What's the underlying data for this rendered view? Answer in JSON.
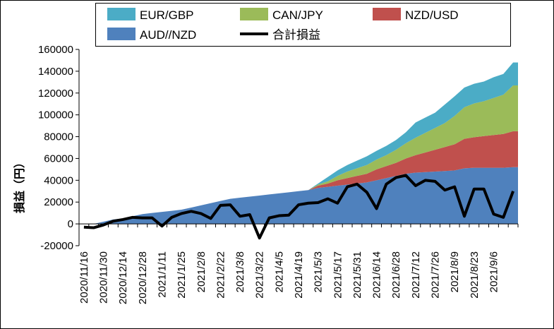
{
  "chart_data": {
    "type": "area",
    "stacked": true,
    "title": "",
    "xlabel": "",
    "ylabel": "損益（円）",
    "ylim": [
      -20000,
      160000
    ],
    "ytick_step": 20000,
    "yticks": [
      "160000",
      "140000",
      "120000",
      "100000",
      "80000",
      "60000",
      "40000",
      "20000",
      "0",
      "-20000"
    ],
    "grid": false,
    "legend_position": "top",
    "x": [
      "2020/11/16",
      "2020/11/23",
      "2020/11/30",
      "2020/12/7",
      "2020/12/14",
      "2020/12/21",
      "2020/12/28",
      "2021/1/4",
      "2021/1/11",
      "2021/1/18",
      "2021/1/25",
      "2021/2/1",
      "2021/2/8",
      "2021/2/15",
      "2021/2/22",
      "2021/3/1",
      "2021/3/8",
      "2021/3/15",
      "2021/3/22",
      "2021/3/29",
      "2021/4/5",
      "2021/4/12",
      "2021/4/19",
      "2021/4/26",
      "2021/5/3",
      "2021/5/10",
      "2021/5/17",
      "2021/5/24",
      "2021/5/31",
      "2021/6/7",
      "2021/6/14",
      "2021/6/21",
      "2021/6/28",
      "2021/7/5",
      "2021/7/12",
      "2021/7/19",
      "2021/7/26",
      "2021/8/2",
      "2021/8/9",
      "2021/8/16",
      "2021/8/23",
      "2021/8/30",
      "2021/9/6",
      "2021/9/13",
      "2021/9/20"
    ],
    "xtick_labels": [
      "2020/11/16",
      "2020/11/30",
      "2020/12/14",
      "2020/12/28",
      "2021/1/11",
      "2021/1/25",
      "2021/2/8",
      "2021/2/22",
      "2021/3/8",
      "2021/3/22",
      "2021/4/5",
      "2021/4/19",
      "2021/5/3",
      "2021/5/17",
      "2021/5/31",
      "2021/6/14",
      "2021/6/28",
      "2021/7/12",
      "2021/7/26",
      "2021/8/9",
      "2021/8/23",
      "2021/9/6"
    ],
    "series": [
      {
        "name": "AUD//NZD",
        "kind": "area",
        "color": "#4f81bd",
        "values": [
          0,
          0,
          2000,
          4000,
          5000,
          7000,
          9000,
          10000,
          11000,
          12000,
          13000,
          15000,
          17000,
          19000,
          21000,
          23000,
          24000,
          25000,
          26000,
          27000,
          28000,
          29000,
          30000,
          31000,
          33000,
          34000,
          35000,
          36000,
          37000,
          38000,
          40000,
          42000,
          44000,
          46000,
          47000,
          47500,
          48000,
          48500,
          49000,
          51000,
          51500,
          51500,
          51500,
          51500,
          52000
        ]
      },
      {
        "name": "NZD/USD",
        "kind": "area",
        "color": "#c0504d",
        "values": [
          0,
          0,
          0,
          0,
          0,
          0,
          0,
          0,
          0,
          0,
          0,
          0,
          0,
          0,
          0,
          0,
          0,
          0,
          0,
          0,
          0,
          0,
          0,
          0,
          2000,
          3000,
          5000,
          6000,
          7000,
          8000,
          10000,
          11000,
          12000,
          14000,
          16000,
          18000,
          20000,
          22000,
          24000,
          27000,
          28000,
          29000,
          30000,
          31000,
          33000
        ]
      },
      {
        "name": "CAN/JPY",
        "kind": "area",
        "color": "#9bbb59",
        "values": [
          0,
          0,
          0,
          0,
          0,
          0,
          0,
          0,
          0,
          0,
          0,
          0,
          0,
          0,
          0,
          0,
          0,
          0,
          0,
          0,
          0,
          0,
          0,
          0,
          1000,
          2000,
          4000,
          6000,
          7000,
          8000,
          9000,
          10000,
          12000,
          14000,
          16000,
          18000,
          20000,
          22000,
          26000,
          29000,
          31000,
          32000,
          34000,
          36000,
          42000
        ]
      },
      {
        "name": "EUR/GBP",
        "kind": "area",
        "color": "#4bacc6",
        "values": [
          0,
          0,
          0,
          0,
          0,
          0,
          0,
          0,
          0,
          0,
          0,
          0,
          0,
          0,
          0,
          0,
          0,
          0,
          0,
          0,
          0,
          0,
          0,
          0,
          1000,
          4000,
          5000,
          6000,
          7000,
          8000,
          8000,
          8500,
          9000,
          10000,
          14000,
          14000,
          14000,
          17000,
          18000,
          18000,
          18000,
          18000,
          19000,
          19000,
          21000
        ]
      },
      {
        "name": "合計損益",
        "kind": "line",
        "color": "#000000",
        "values": [
          -3000,
          -3500,
          -1000,
          2500,
          4000,
          6000,
          5500,
          5500,
          -2000,
          6000,
          9500,
          11500,
          9500,
          5000,
          17000,
          17500,
          7000,
          8500,
          -13000,
          5500,
          7500,
          8000,
          17500,
          19000,
          19500,
          23000,
          19000,
          34000,
          36500,
          29000,
          14000,
          36500,
          42500,
          44500,
          35000,
          40000,
          39000,
          31000,
          34000,
          7000,
          32000,
          32000,
          9000,
          6000,
          30000
        ]
      }
    ]
  }
}
